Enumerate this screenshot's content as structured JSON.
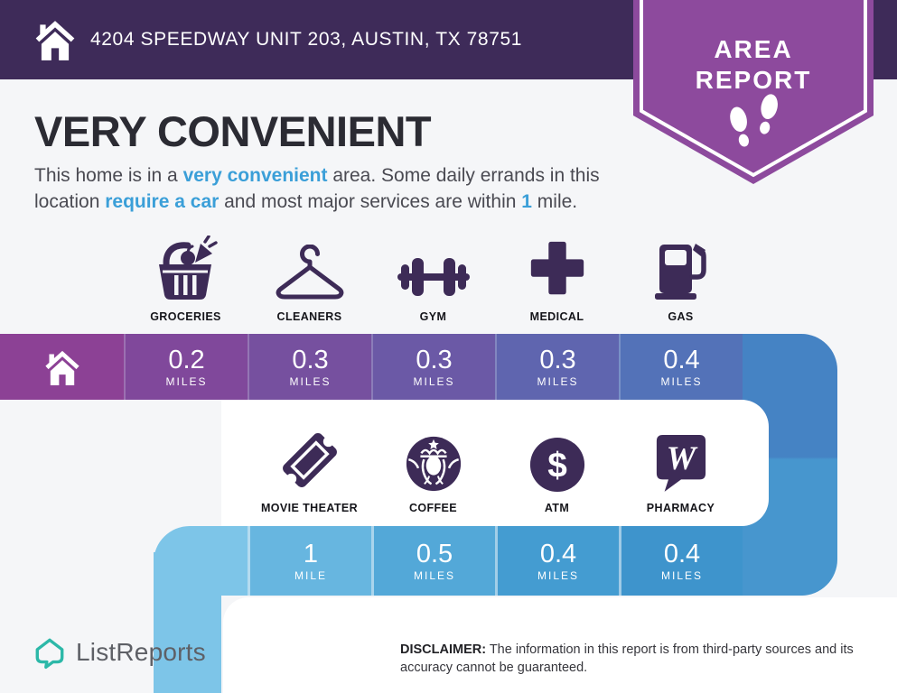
{
  "header": {
    "address": "4204 SPEEDWAY UNIT 203, AUSTIN, TX 78751"
  },
  "badge": {
    "line1": "AREA",
    "line2": "REPORT"
  },
  "title": "VERY CONVENIENT",
  "lede_segments": [
    {
      "text": "This home is in a ",
      "accent": false
    },
    {
      "text": "very convenient",
      "accent": true
    },
    {
      "text": " area. Some daily errands in this location ",
      "accent": false
    },
    {
      "text": "require a car",
      "accent": true
    },
    {
      "text": " and most major services are within ",
      "accent": false
    },
    {
      "text": "1",
      "accent": true
    },
    {
      "text": " mile.",
      "accent": false
    }
  ],
  "colors": {
    "header_bg": "#3e2b59",
    "badge_purple": "#8d4a9d",
    "accent": "#3b9fd8",
    "icon_purple": "#3d2b57",
    "brand_teal": "#2cb8a8",
    "page_bg": "#f5f6f8"
  },
  "pois": {
    "row1": [
      {
        "label": "GROCERIES"
      },
      {
        "label": "CLEANERS"
      },
      {
        "label": "GYM"
      },
      {
        "label": "MEDICAL"
      },
      {
        "label": "GAS"
      }
    ],
    "row2": [
      {
        "label": "MOVIE THEATER"
      },
      {
        "label": "COFFEE"
      },
      {
        "label": "ATM"
      },
      {
        "label": "PHARMACY"
      }
    ]
  },
  "bars": {
    "row1": {
      "home_color": "#8c4195",
      "connector_top_color": "#4583c4",
      "connector_bottom_color": "#4796ce",
      "segments": [
        {
          "value": "0.2",
          "unit": "MILES",
          "color": "#80489b"
        },
        {
          "value": "0.3",
          "unit": "MILES",
          "color": "#76509f"
        },
        {
          "value": "0.3",
          "unit": "MILES",
          "color": "#6b59a6"
        },
        {
          "value": "0.3",
          "unit": "MILES",
          "color": "#5f65af"
        },
        {
          "value": "0.4",
          "unit": "MILES",
          "color": "#5372b8"
        }
      ]
    },
    "row2": {
      "curve_color": "#7dc5e8",
      "segments": [
        {
          "value": "1",
          "unit": "MILE",
          "color": "#67b6e0"
        },
        {
          "value": "0.5",
          "unit": "MILES",
          "color": "#53a8d8"
        },
        {
          "value": "0.4",
          "unit": "MILES",
          "color": "#449cd1"
        },
        {
          "value": "0.4",
          "unit": "MILES",
          "color": "#3e94cc"
        }
      ]
    }
  },
  "footer": {
    "brand": "ListReports",
    "disclaimer_label": "DISCLAIMER:",
    "disclaimer_text": " The information in this report is from third-party sources and its accuracy cannot be guaranteed."
  }
}
